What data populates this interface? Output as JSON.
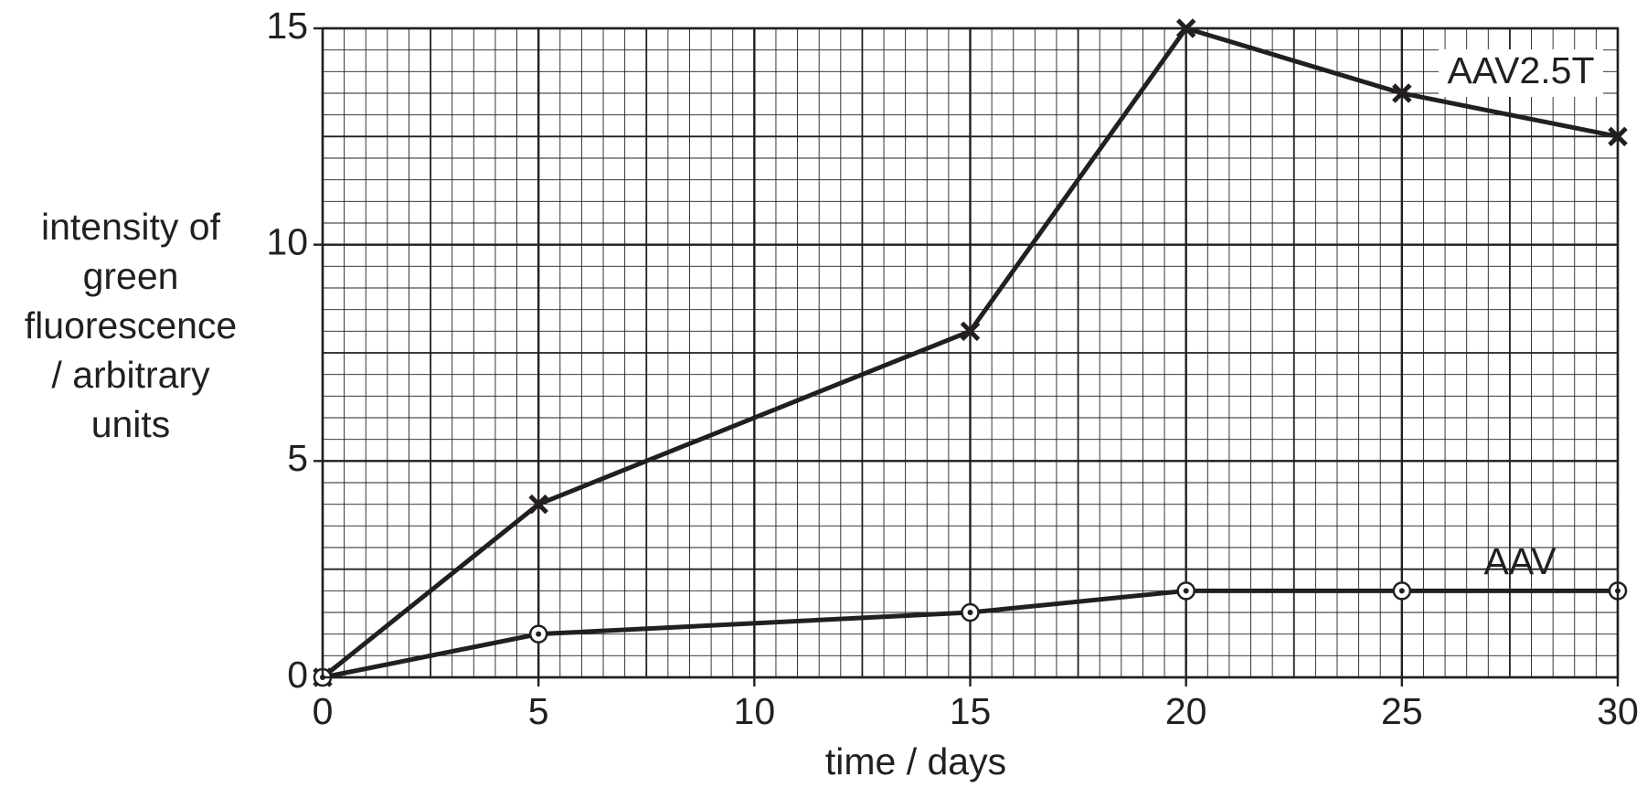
{
  "chart_data": {
    "type": "line",
    "x_label": "time / days",
    "y_label": [
      "intensity of",
      "green",
      "fluorescence",
      "/ arbitrary",
      "units"
    ],
    "x": [
      0,
      5,
      15,
      20,
      25,
      30
    ],
    "series": [
      {
        "name": "AAV2.5T",
        "color": "#231f20",
        "marker": "x",
        "values": [
          0,
          4,
          8,
          15,
          13.5,
          12.5
        ]
      },
      {
        "name": "AAV",
        "color": "#231f20",
        "marker": "circle-dot",
        "values": [
          0,
          1,
          1.5,
          2,
          2,
          2
        ]
      }
    ],
    "xlim": [
      0,
      30
    ],
    "xticks": [
      0,
      5,
      10,
      15,
      20,
      25,
      30
    ],
    "ylim": [
      0,
      15
    ],
    "yticks": [
      0,
      5,
      10,
      15
    ],
    "grid": true
  }
}
